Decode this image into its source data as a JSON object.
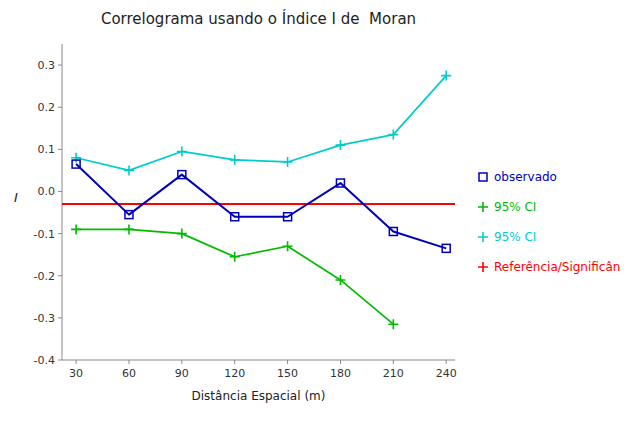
{
  "chart_data": {
    "type": "line",
    "title": "Correlograma usando o Índice I de  Moran",
    "xlabel": "Distância Espacial (m)",
    "ylabel": "I",
    "x": [
      30,
      60,
      90,
      120,
      150,
      180,
      210,
      240
    ],
    "series": [
      {
        "name": "observado",
        "color": "#0000BB",
        "marker": "square",
        "values": [
          0.065,
          -0.055,
          0.04,
          -0.06,
          -0.06,
          0.02,
          -0.095,
          -0.135
        ]
      },
      {
        "name": "95% CI",
        "color": "#00BB00",
        "marker": "plus",
        "values": [
          -0.09,
          -0.09,
          -0.1,
          -0.155,
          -0.13,
          -0.21,
          -0.315,
          null
        ]
      },
      {
        "name": "95% CI",
        "color": "#00CCCC",
        "marker": "plus",
        "values": [
          0.08,
          0.05,
          0.095,
          0.075,
          0.07,
          0.11,
          0.135,
          0.275
        ]
      }
    ],
    "reference_line": {
      "name": "Referência/Significân",
      "y": -0.03,
      "color": "#FF0000"
    },
    "xlim": [
      22,
      245
    ],
    "ylim": [
      -0.4,
      0.35
    ],
    "xticks": [
      30,
      60,
      90,
      120,
      150,
      180,
      210,
      240
    ],
    "yticks": [
      -0.4,
      -0.3,
      -0.2,
      -0.1,
      {
        "value": 0,
        "label": "0.0"
      },
      0.1,
      0.2,
      0.3
    ],
    "legend": "right"
  }
}
